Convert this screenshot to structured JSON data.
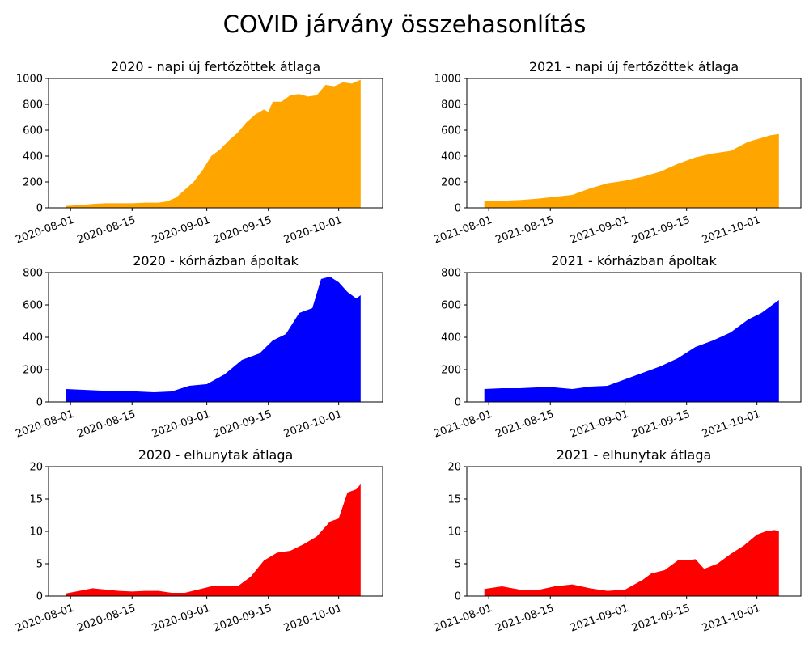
{
  "figure": {
    "suptitle": "COVID járvány összehasonlítás"
  },
  "chart_data": [
    {
      "id": "p2020_cases",
      "type": "area",
      "title": "2020 - napi új fertőzöttek átlaga",
      "color": "#ffa500",
      "ylim": [
        0,
        1000
      ],
      "yticks": [
        0,
        200,
        400,
        600,
        800,
        1000
      ],
      "xlim": [
        "2020-07-27",
        "2020-10-11"
      ],
      "xticks": [
        "2020-08-01",
        "2020-08-15",
        "2020-09-01",
        "2020-09-15",
        "2020-10-01"
      ],
      "x": [
        "2020-07-31",
        "2020-08-03",
        "2020-08-06",
        "2020-08-09",
        "2020-08-12",
        "2020-08-15",
        "2020-08-18",
        "2020-08-21",
        "2020-08-23",
        "2020-08-25",
        "2020-08-27",
        "2020-08-29",
        "2020-08-31",
        "2020-09-02",
        "2020-09-04",
        "2020-09-06",
        "2020-09-08",
        "2020-09-10",
        "2020-09-12",
        "2020-09-14",
        "2020-09-15",
        "2020-09-16",
        "2020-09-18",
        "2020-09-20",
        "2020-09-22",
        "2020-09-24",
        "2020-09-26",
        "2020-09-28",
        "2020-09-30",
        "2020-10-02",
        "2020-10-04",
        "2020-10-06"
      ],
      "y": [
        15,
        20,
        30,
        35,
        35,
        35,
        40,
        40,
        50,
        80,
        140,
        200,
        290,
        400,
        450,
        520,
        580,
        660,
        720,
        760,
        740,
        820,
        820,
        870,
        880,
        860,
        870,
        950,
        940,
        970,
        960,
        990
      ]
    },
    {
      "id": "p2021_cases",
      "type": "area",
      "title": "2021 - napi új fertőzöttek átlaga",
      "color": "#ffa500",
      "ylim": [
        0,
        1000
      ],
      "yticks": [
        0,
        200,
        400,
        600,
        800,
        1000
      ],
      "xlim": [
        "2021-07-27",
        "2021-10-11"
      ],
      "xticks": [
        "2021-08-01",
        "2021-08-15",
        "2021-09-01",
        "2021-09-15",
        "2021-10-01"
      ],
      "x": [
        "2021-07-31",
        "2021-08-04",
        "2021-08-08",
        "2021-08-12",
        "2021-08-16",
        "2021-08-20",
        "2021-08-24",
        "2021-08-28",
        "2021-09-01",
        "2021-09-05",
        "2021-09-09",
        "2021-09-13",
        "2021-09-17",
        "2021-09-21",
        "2021-09-25",
        "2021-09-29",
        "2021-10-02",
        "2021-10-04",
        "2021-10-06"
      ],
      "y": [
        55,
        55,
        60,
        70,
        85,
        100,
        150,
        190,
        210,
        240,
        280,
        340,
        390,
        420,
        440,
        510,
        540,
        560,
        570
      ]
    },
    {
      "id": "p2020_hosp",
      "type": "area",
      "title": "2020 - kórházban ápoltak",
      "color": "#0000ff",
      "ylim": [
        0,
        800
      ],
      "yticks": [
        0,
        200,
        400,
        600,
        800
      ],
      "xlim": [
        "2020-07-27",
        "2020-10-11"
      ],
      "xticks": [
        "2020-08-01",
        "2020-08-15",
        "2020-09-01",
        "2020-09-15",
        "2020-10-01"
      ],
      "x": [
        "2020-07-31",
        "2020-08-04",
        "2020-08-08",
        "2020-08-12",
        "2020-08-16",
        "2020-08-20",
        "2020-08-24",
        "2020-08-28",
        "2020-09-01",
        "2020-09-05",
        "2020-09-09",
        "2020-09-13",
        "2020-09-16",
        "2020-09-19",
        "2020-09-22",
        "2020-09-25",
        "2020-09-27",
        "2020-09-29",
        "2020-10-01",
        "2020-10-03",
        "2020-10-05",
        "2020-10-06"
      ],
      "y": [
        80,
        75,
        70,
        70,
        65,
        60,
        65,
        100,
        110,
        170,
        260,
        300,
        380,
        420,
        550,
        580,
        760,
        775,
        740,
        680,
        640,
        660
      ]
    },
    {
      "id": "p2021_hosp",
      "type": "area",
      "title": "2021 - kórházban ápoltak",
      "color": "#0000ff",
      "ylim": [
        0,
        800
      ],
      "yticks": [
        0,
        200,
        400,
        600,
        800
      ],
      "xlim": [
        "2021-07-27",
        "2021-10-11"
      ],
      "xticks": [
        "2021-08-01",
        "2021-08-15",
        "2021-09-01",
        "2021-09-15",
        "2021-10-01"
      ],
      "x": [
        "2021-07-31",
        "2021-08-04",
        "2021-08-08",
        "2021-08-12",
        "2021-08-16",
        "2021-08-20",
        "2021-08-24",
        "2021-08-28",
        "2021-09-01",
        "2021-09-05",
        "2021-09-09",
        "2021-09-13",
        "2021-09-17",
        "2021-09-21",
        "2021-09-25",
        "2021-09-29",
        "2021-10-02",
        "2021-10-04",
        "2021-10-06"
      ],
      "y": [
        80,
        85,
        85,
        90,
        90,
        80,
        95,
        100,
        140,
        180,
        220,
        270,
        340,
        380,
        430,
        510,
        550,
        590,
        630
      ]
    },
    {
      "id": "p2020_deaths",
      "type": "area",
      "title": "2020 - elhunytak átlaga",
      "color": "#ff0000",
      "ylim": [
        0,
        20
      ],
      "yticks": [
        0,
        5,
        10,
        15,
        20
      ],
      "xlim": [
        "2020-07-27",
        "2020-10-11"
      ],
      "xticks": [
        "2020-08-01",
        "2020-08-15",
        "2020-09-01",
        "2020-09-15",
        "2020-10-01"
      ],
      "x": [
        "2020-07-31",
        "2020-08-03",
        "2020-08-06",
        "2020-08-09",
        "2020-08-12",
        "2020-08-15",
        "2020-08-18",
        "2020-08-21",
        "2020-08-24",
        "2020-08-27",
        "2020-08-30",
        "2020-09-02",
        "2020-09-05",
        "2020-09-08",
        "2020-09-11",
        "2020-09-14",
        "2020-09-17",
        "2020-09-20",
        "2020-09-23",
        "2020-09-26",
        "2020-09-29",
        "2020-10-01",
        "2020-10-03",
        "2020-10-05",
        "2020-10-06"
      ],
      "y": [
        0.4,
        0.8,
        1.2,
        1.0,
        0.8,
        0.7,
        0.8,
        0.8,
        0.5,
        0.5,
        1.0,
        1.5,
        1.5,
        1.5,
        3.0,
        5.5,
        6.7,
        7.0,
        8.0,
        9.2,
        11.5,
        12.0,
        16.0,
        16.5,
        17.3
      ]
    },
    {
      "id": "p2021_deaths",
      "type": "area",
      "title": "2021 - elhunytak átlaga",
      "color": "#ff0000",
      "ylim": [
        0,
        20
      ],
      "yticks": [
        0,
        5,
        10,
        15,
        20
      ],
      "xlim": [
        "2021-07-27",
        "2021-10-11"
      ],
      "xticks": [
        "2021-08-01",
        "2021-08-15",
        "2021-09-01",
        "2021-09-15",
        "2021-10-01"
      ],
      "x": [
        "2021-07-31",
        "2021-08-04",
        "2021-08-08",
        "2021-08-12",
        "2021-08-16",
        "2021-08-20",
        "2021-08-24",
        "2021-08-28",
        "2021-09-01",
        "2021-09-05",
        "2021-09-07",
        "2021-09-10",
        "2021-09-13",
        "2021-09-15",
        "2021-09-17",
        "2021-09-19",
        "2021-09-22",
        "2021-09-25",
        "2021-09-28",
        "2021-10-01",
        "2021-10-03",
        "2021-10-05",
        "2021-10-06"
      ],
      "y": [
        1.1,
        1.5,
        1.0,
        0.9,
        1.5,
        1.8,
        1.2,
        0.8,
        1.0,
        2.5,
        3.5,
        4.0,
        5.5,
        5.5,
        5.7,
        4.2,
        5.0,
        6.5,
        7.8,
        9.5,
        10.0,
        10.2,
        10.0
      ]
    }
  ]
}
